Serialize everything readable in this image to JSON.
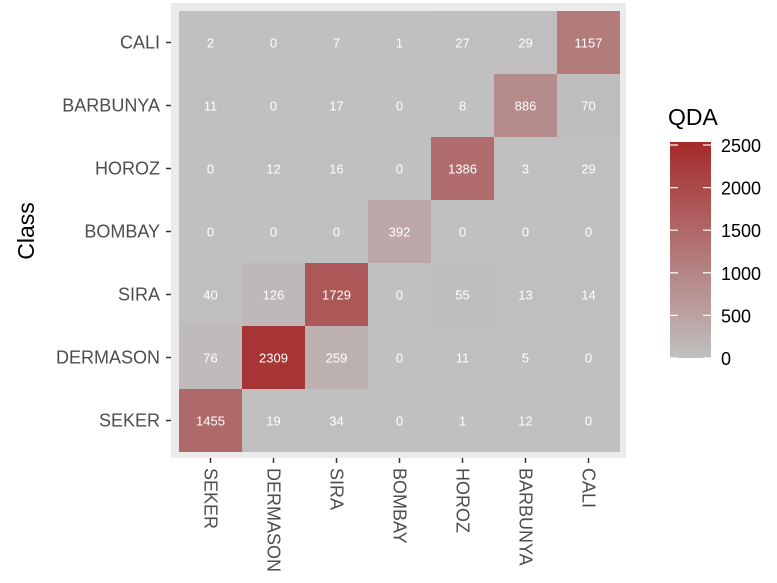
{
  "chart_data": {
    "type": "heatmap",
    "x_categories": [
      "SEKER",
      "DERMASON",
      "SIRA",
      "BOMBAY",
      "HOROZ",
      "BARBUNYA",
      "CALI"
    ],
    "y_categories": [
      "SEKER",
      "DERMASON",
      "SIRA",
      "BOMBAY",
      "HOROZ",
      "BARBUNYA",
      "CALI"
    ],
    "ylabel": "Class",
    "xlabel": "",
    "values": [
      [
        1455,
        19,
        34,
        0,
        1,
        12,
        0
      ],
      [
        76,
        2309,
        259,
        0,
        11,
        5,
        0
      ],
      [
        40,
        126,
        1729,
        0,
        55,
        13,
        14
      ],
      [
        0,
        0,
        0,
        392,
        0,
        0,
        0
      ],
      [
        0,
        12,
        16,
        0,
        1386,
        3,
        29
      ],
      [
        11,
        0,
        17,
        0,
        8,
        886,
        70
      ],
      [
        2,
        0,
        7,
        1,
        27,
        29,
        1157
      ]
    ],
    "legend": {
      "title": "QDA",
      "placement": "right",
      "min": 0,
      "max": 2500,
      "ticks": [
        "0",
        "500",
        "1000",
        "1500",
        "2000",
        "2500"
      ],
      "low_color": "#c0c0c0",
      "high_color": "#a52a2a"
    },
    "panel_color": "#ebebeb"
  }
}
